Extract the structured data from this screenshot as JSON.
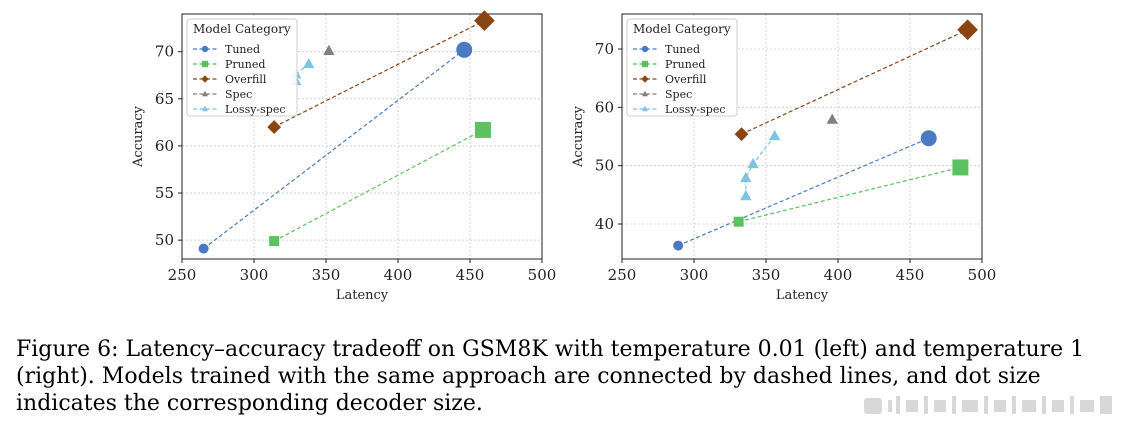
{
  "chart_data": [
    {
      "type": "scatter",
      "xlabel": "Latency",
      "ylabel": "Accuracy",
      "xlim": [
        250,
        500
      ],
      "ylim": [
        48,
        74
      ],
      "xticks": [
        250,
        300,
        350,
        400,
        450,
        500
      ],
      "yticks": [
        50,
        55,
        60,
        65,
        70
      ],
      "grid": true,
      "legend": {
        "title": "Model Category",
        "position": "top-left"
      },
      "series": [
        {
          "name": "Tuned",
          "color": "#4a7ac4",
          "marker": "circle",
          "points": [
            [
              265,
              49.1
            ],
            [
              446,
              70.2
            ]
          ],
          "sizes": [
            5,
            8
          ]
        },
        {
          "name": "Pruned",
          "color": "#5cc160",
          "marker": "square",
          "points": [
            [
              314,
              49.9
            ],
            [
              459,
              61.7
            ]
          ],
          "sizes": [
            5,
            8
          ]
        },
        {
          "name": "Overfill",
          "color": "#8b4513",
          "marker": "diamond",
          "points": [
            [
              314,
              62.0
            ],
            [
              460,
              73.3
            ]
          ],
          "sizes": [
            6,
            9
          ]
        },
        {
          "name": "Spec",
          "color": "#808080",
          "marker": "triangle",
          "points": [
            [
              352,
              70.1
            ]
          ],
          "sizes": [
            6
          ]
        },
        {
          "name": "Lossy-spec",
          "color": "#7ec3e0",
          "marker": "triangle",
          "points": [
            [
              329,
              66.9
            ],
            [
              329,
              67.6
            ],
            [
              338,
              68.7
            ]
          ],
          "sizes": [
            6,
            6,
            6
          ]
        }
      ]
    },
    {
      "type": "scatter",
      "xlabel": "Latency",
      "ylabel": "Accuracy",
      "xlim": [
        250,
        500
      ],
      "ylim": [
        34,
        76
      ],
      "xticks": [
        250,
        300,
        350,
        400,
        450,
        500
      ],
      "yticks": [
        40,
        50,
        60,
        70
      ],
      "grid": true,
      "legend": {
        "title": "Model Category",
        "position": "top-left"
      },
      "series": [
        {
          "name": "Tuned",
          "color": "#4a7ac4",
          "marker": "circle",
          "points": [
            [
              289,
              36.3
            ],
            [
              463,
              54.7
            ]
          ],
          "sizes": [
            5,
            8
          ]
        },
        {
          "name": "Pruned",
          "color": "#5cc160",
          "marker": "square",
          "points": [
            [
              331,
              40.4
            ],
            [
              485,
              49.7
            ]
          ],
          "sizes": [
            5,
            8
          ]
        },
        {
          "name": "Overfill",
          "color": "#8b4513",
          "marker": "diamond",
          "points": [
            [
              333,
              55.4
            ],
            [
              490,
              73.3
            ]
          ],
          "sizes": [
            6,
            9
          ]
        },
        {
          "name": "Spec",
          "color": "#808080",
          "marker": "triangle",
          "points": [
            [
              396,
              57.9
            ]
          ],
          "sizes": [
            6
          ]
        },
        {
          "name": "Lossy-spec",
          "color": "#7ec3e0",
          "marker": "triangle",
          "points": [
            [
              336,
              44.8
            ],
            [
              336,
              47.9
            ],
            [
              341,
              50.3
            ],
            [
              356,
              55.1
            ]
          ],
          "sizes": [
            6,
            6,
            6,
            6
          ]
        }
      ]
    }
  ],
  "caption": "Figure 6: Latency–accuracy tradeoff on GSM8K with temperature 0.01 (left) and temperature 1 (right). Models trained with the same approach are connected by dashed lines, and dot size indicates the corresponding decoder size."
}
